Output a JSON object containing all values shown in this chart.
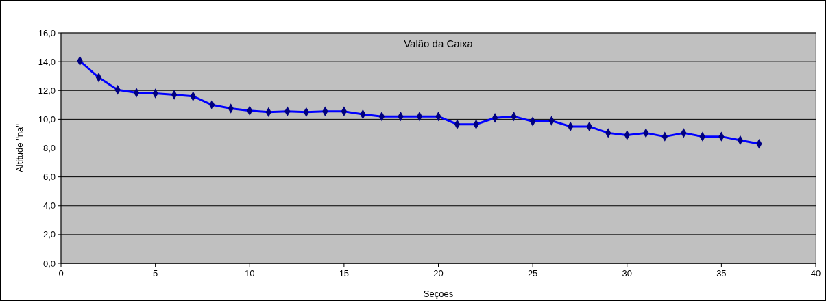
{
  "chart_data": {
    "type": "line",
    "title": "Valão da Caixa",
    "xlabel": "Seções",
    "ylabel": "Altitude \"na\"",
    "x": [
      1,
      2,
      3,
      4,
      5,
      6,
      7,
      8,
      9,
      10,
      11,
      12,
      13,
      14,
      15,
      16,
      17,
      18,
      19,
      20,
      21,
      22,
      23,
      24,
      25,
      26,
      27,
      28,
      29,
      30,
      31,
      32,
      33,
      34,
      35,
      36,
      37
    ],
    "series": [
      {
        "color": "#0000ff",
        "values": [
          14.05,
          12.9,
          12.05,
          11.85,
          11.8,
          11.7,
          11.6,
          11.0,
          10.75,
          10.6,
          10.5,
          10.55,
          10.5,
          10.55,
          10.55,
          10.35,
          10.2,
          10.2,
          10.2,
          10.2,
          9.65,
          9.65,
          10.1,
          10.2,
          9.85,
          9.9,
          9.5,
          9.5,
          9.05,
          8.9,
          9.05,
          8.8,
          9.05,
          8.8,
          8.8,
          8.55,
          8.3
        ]
      }
    ],
    "marker": "diamond",
    "grid": "y",
    "xlim": [
      0,
      40
    ],
    "xticks": [
      0,
      5,
      10,
      15,
      20,
      25,
      30,
      35,
      40
    ],
    "ylim": [
      0,
      16
    ],
    "yticks": [
      {
        "value": 0,
        "label": "0,0"
      },
      {
        "value": 2,
        "label": "2,0"
      },
      {
        "value": 4,
        "label": "4,0"
      },
      {
        "value": 6,
        "label": "6,0"
      },
      {
        "value": 8,
        "label": "8,0"
      },
      {
        "value": 10,
        "label": "10,0"
      },
      {
        "value": 12,
        "label": "12,0"
      },
      {
        "value": 14,
        "label": "14,0"
      },
      {
        "value": 16,
        "label": "16,0"
      }
    ]
  }
}
